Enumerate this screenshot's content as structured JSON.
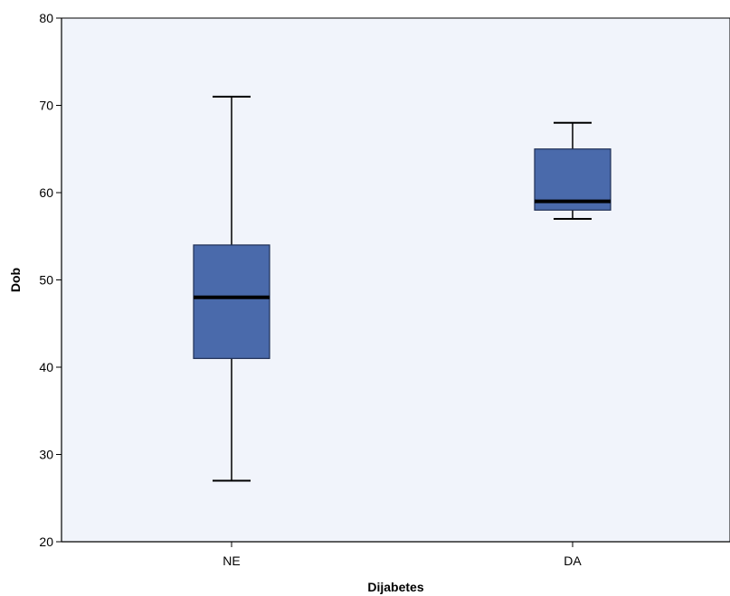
{
  "chart_data": {
    "type": "boxplot",
    "xlabel": "Dijabetes",
    "ylabel": "Dob",
    "ylim": [
      20,
      80
    ],
    "yticks": [
      20,
      30,
      40,
      50,
      60,
      70,
      80
    ],
    "grid": false,
    "categories": [
      "NE",
      "DA"
    ],
    "boxes": [
      {
        "category": "NE",
        "min": 27,
        "q1": 41,
        "median": 48,
        "q3": 54,
        "max": 71
      },
      {
        "category": "DA",
        "min": 57,
        "q1": 58,
        "median": 59,
        "q3": 65,
        "max": 68
      }
    ],
    "colors": {
      "plot_background": "#f1f4fb",
      "box_fill": "#4a6aab",
      "line": "#000000"
    }
  }
}
